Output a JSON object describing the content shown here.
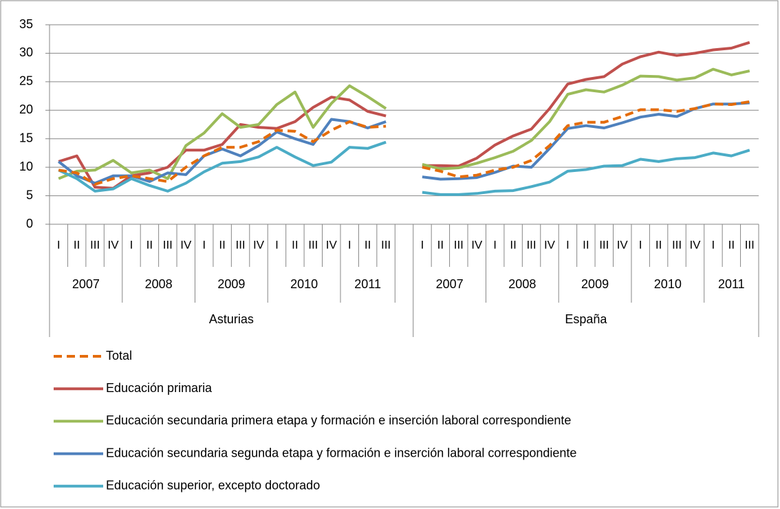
{
  "chart_data": {
    "type": "line",
    "categories": [
      "I",
      "II",
      "III",
      "IV",
      "I",
      "II",
      "III",
      "IV",
      "I",
      "II",
      "III",
      "IV",
      "I",
      "II",
      "III",
      "IV",
      "I",
      "II",
      "III",
      null,
      "I",
      "II",
      "III",
      "IV",
      "I",
      "II",
      "III",
      "IV",
      "I",
      "II",
      "III",
      "IV",
      "I",
      "II",
      "III",
      "IV",
      "I",
      "II",
      "III"
    ],
    "category_years": [
      "2007",
      "2007",
      "2007",
      "2007",
      "2008",
      "2008",
      "2008",
      "2008",
      "2009",
      "2009",
      "2009",
      "2009",
      "2010",
      "2010",
      "2010",
      "2010",
      "2011",
      "2011",
      "2011",
      null,
      "2007",
      "2007",
      "2007",
      "2007",
      "2008",
      "2008",
      "2008",
      "2008",
      "2009",
      "2009",
      "2009",
      "2009",
      "2010",
      "2010",
      "2010",
      "2010",
      "2011",
      "2011",
      "2011"
    ],
    "category_regions": [
      "Asturias",
      "Asturias",
      "Asturias",
      "Asturias",
      "Asturias",
      "Asturias",
      "Asturias",
      "Asturias",
      "Asturias",
      "Asturias",
      "Asturias",
      "Asturias",
      "Asturias",
      "Asturias",
      "Asturias",
      "Asturias",
      "Asturias",
      "Asturias",
      "Asturias",
      "Asturias",
      "España",
      "España",
      "España",
      "España",
      "España",
      "España",
      "España",
      "España",
      "España",
      "España",
      "España",
      "España",
      "España",
      "España",
      "España",
      "España",
      "España",
      "España",
      "España"
    ],
    "ylim": [
      0,
      35
    ],
    "yticks": [
      0,
      5,
      10,
      15,
      20,
      25,
      30,
      35
    ],
    "grid": true,
    "series": [
      {
        "name": "Total",
        "color": "#e46c0a",
        "dashed": true,
        "values": [
          9.5,
          9,
          7,
          8,
          8.5,
          8,
          7.5,
          10,
          12,
          13.5,
          13.5,
          14.5,
          16.5,
          16.3,
          14.5,
          16.5,
          18,
          17,
          17.2,
          null,
          10,
          9.3,
          8.3,
          8.6,
          9.5,
          10,
          11.2,
          13.8,
          17.3,
          17.9,
          17.9,
          18.9,
          20.1,
          20.1,
          19.8,
          20.3,
          21.1,
          21,
          21.5
        ]
      },
      {
        "name": "Educación primaria",
        "color": "#c0504d",
        "values": [
          11,
          12,
          6.5,
          6.3,
          8.5,
          9,
          10,
          13,
          13,
          14,
          17.5,
          17,
          16.8,
          18,
          20.5,
          22.3,
          21.8,
          19.8,
          19,
          null,
          10.3,
          10.3,
          10.2,
          11.6,
          13.9,
          15.5,
          16.7,
          20.3,
          24.6,
          25.4,
          25.9,
          28.1,
          29.4,
          30.2,
          29.6,
          30,
          30.6,
          30.9,
          31.9
        ]
      },
      {
        "name": "Educación secundaria primera etapa y formación e inserción laboral correspondiente",
        "color": "#9bbb59",
        "values": [
          8,
          9.3,
          9.5,
          11.2,
          9,
          9.5,
          8,
          13.8,
          16,
          19.4,
          17,
          17.5,
          21,
          23.2,
          17,
          21.2,
          24.3,
          22.4,
          20.3,
          null,
          10.5,
          9.7,
          9.9,
          10.7,
          11.7,
          12.8,
          14.7,
          18,
          22.8,
          23.6,
          23.2,
          24.4,
          26,
          25.9,
          25.3,
          25.7,
          27.2,
          26.2,
          26.9
        ]
      },
      {
        "name": "Educación secundaria segunda etapa y formación e inserción laboral correspondiente",
        "color": "#4f81bd",
        "values": [
          11,
          8.5,
          7.2,
          8.5,
          8.5,
          7.5,
          9,
          8.7,
          12,
          13.2,
          12,
          13.8,
          16.2,
          15,
          14,
          18.4,
          18,
          16.9,
          18,
          null,
          8.3,
          7.9,
          8,
          8.2,
          9.1,
          10.2,
          10,
          13.3,
          16.8,
          17.3,
          16.9,
          17.8,
          18.8,
          19.3,
          18.9,
          20.3,
          21.1,
          21.1,
          21.3
        ]
      },
      {
        "name": "Educación superior, excepto doctorado",
        "color": "#4bacc6",
        "values": [
          9.5,
          8,
          5.8,
          6.2,
          8,
          6.8,
          5.8,
          7.2,
          9.2,
          10.7,
          11,
          11.8,
          13.5,
          11.8,
          10.3,
          10.9,
          13.5,
          13.3,
          14.4,
          null,
          5.6,
          5.2,
          5.2,
          5.4,
          5.8,
          5.9,
          6.6,
          7.4,
          9.3,
          9.6,
          10.2,
          10.3,
          11.4,
          11,
          11.5,
          11.7,
          12.5,
          12,
          13
        ]
      }
    ]
  }
}
